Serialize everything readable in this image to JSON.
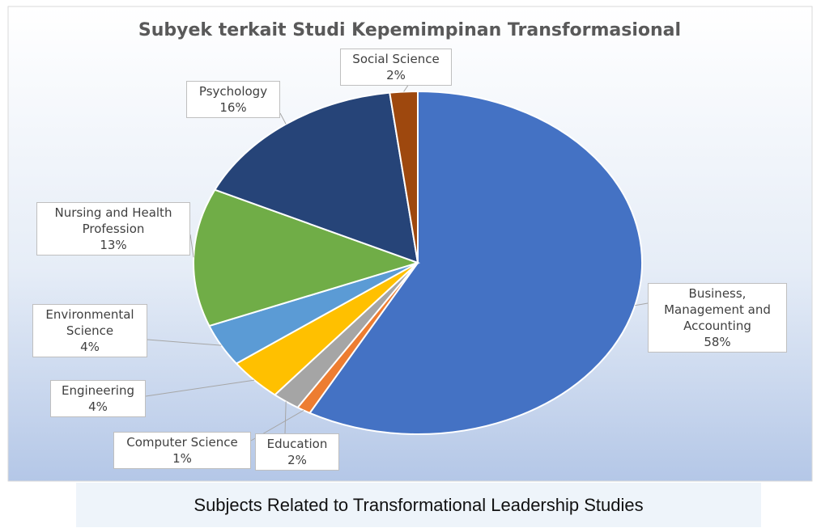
{
  "chart_data": {
    "type": "pie",
    "title": "Subyek terkait Studi Kepemimpinan Transformasional",
    "categories": [
      "Business, Management and Accounting",
      "Computer Science",
      "Education",
      "Engineering",
      "Environmental Science",
      "Nursing and Health Profession",
      "Psychology",
      "Social Science"
    ],
    "values": [
      58,
      1,
      2,
      4,
      4,
      13,
      16,
      2
    ],
    "value_labels": [
      "58%",
      "1%",
      "2%",
      "4%",
      "4%",
      "13%",
      "16%",
      "2%"
    ],
    "colors": [
      "#4472c4",
      "#ed7d31",
      "#a5a5a5",
      "#ffc000",
      "#5b9bd5",
      "#70ad47",
      "#264478",
      "#9e480e"
    ]
  },
  "caption": "Subjects Related to Transformational Leadership Studies"
}
